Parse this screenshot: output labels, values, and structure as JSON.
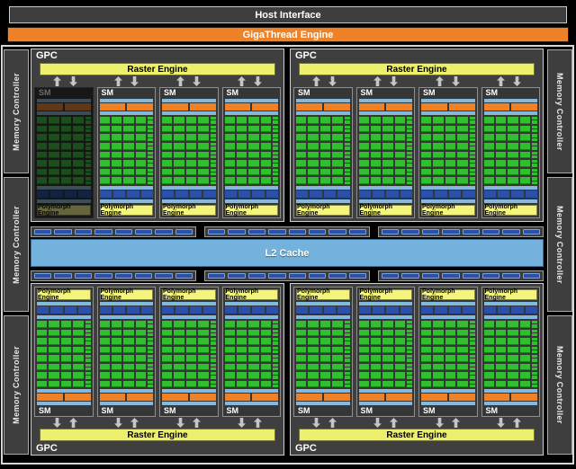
{
  "title_bars": {
    "host_interface": "Host Interface",
    "gigathread": "GigaThread Engine"
  },
  "labels": {
    "gpc": "GPC",
    "sm": "SM",
    "raster_engine": "Raster Engine",
    "polymorph_engine": "Polymorph Engine",
    "memory_controller": "Memory Controller",
    "l2_cache": "L2 Cache"
  },
  "colors": {
    "orange": "#EF8227",
    "raster_yellow": "#EDF06D",
    "poly_yellow": "#F2F47C",
    "core_green": "#2FBF2F",
    "light_blue": "#84B9DE",
    "dark_blue": "#2B50AC",
    "l2_blue": "#73B2DC",
    "panel_gray": "#3E3E3E",
    "sm_gray": "#363636",
    "arrow_gray": "#C6C6C6"
  },
  "structure": {
    "gpcs": [
      {
        "id": "gpc-top-left",
        "flipped": false,
        "sms": [
          {
            "disabled": true
          },
          {
            "disabled": false
          },
          {
            "disabled": false
          },
          {
            "disabled": false
          }
        ]
      },
      {
        "id": "gpc-top-right",
        "flipped": false,
        "sms": [
          {
            "disabled": false
          },
          {
            "disabled": false
          },
          {
            "disabled": false
          },
          {
            "disabled": false
          }
        ]
      },
      {
        "id": "gpc-bottom-left",
        "flipped": true,
        "sms": [
          {
            "disabled": false
          },
          {
            "disabled": false
          },
          {
            "disabled": false
          },
          {
            "disabled": false
          }
        ]
      },
      {
        "id": "gpc-bottom-right",
        "flipped": true,
        "sms": [
          {
            "disabled": false
          },
          {
            "disabled": false
          },
          {
            "disabled": false
          },
          {
            "disabled": false
          }
        ]
      }
    ],
    "sm": {
      "core_columns": 4,
      "core_rows": 8,
      "side_minis_per_row": 2,
      "orange_segments": 2,
      "blue_segments": 4
    },
    "memory_controller_blocks_per_side": 3,
    "l2_segment_rows": {
      "rows": 2,
      "groups": 3,
      "segments_per_group": 8
    }
  }
}
